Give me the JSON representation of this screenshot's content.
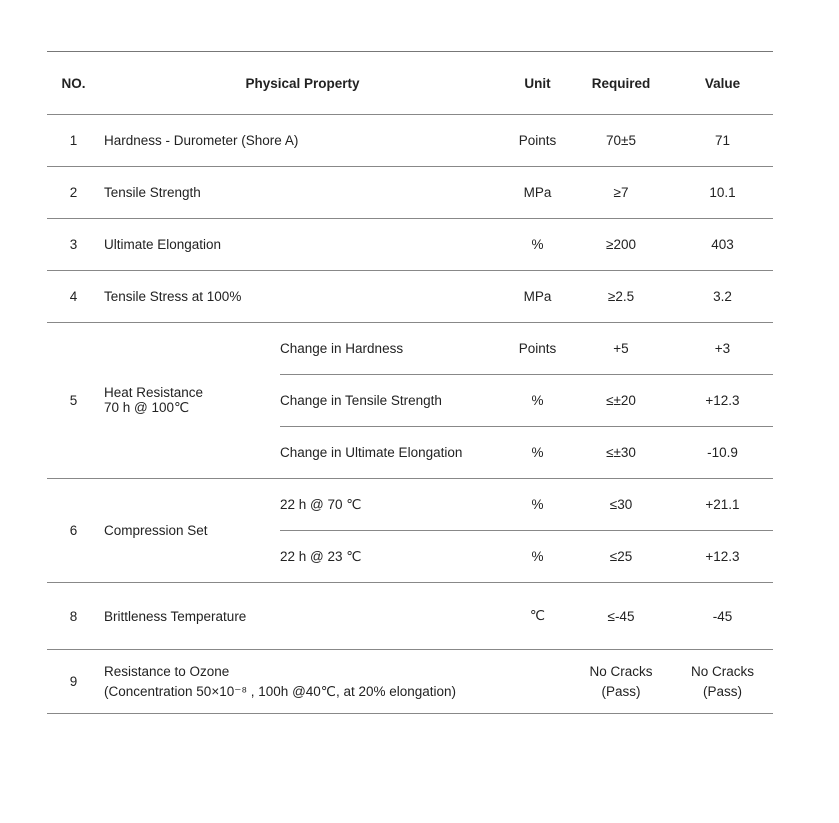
{
  "header": {
    "no": "NO.",
    "property": "Physical Property",
    "unit": "Unit",
    "required": "Required",
    "value": "Value"
  },
  "rows": [
    {
      "no": "1",
      "property": "Hardness  -  Durometer (Shore A)",
      "unit": "Points",
      "required": "70±5",
      "value": "71"
    },
    {
      "no": "2",
      "property": "Tensile Strength",
      "unit": "MPa",
      "required": "≥7",
      "value": "10.1"
    },
    {
      "no": "3",
      "property": "Ultimate Elongation",
      "unit": "%",
      "required": "≥200",
      "value": "403"
    },
    {
      "no": "4",
      "property": "Tensile Stress at 100%",
      "unit": "MPa",
      "required": "≥2.5",
      "value": "3.2"
    },
    {
      "no": "5",
      "property": "Heat Resistance",
      "property_line2": "70 h @ 100℃",
      "sub": [
        {
          "label": "Change in Hardness",
          "unit": "Points",
          "required": "+5",
          "value": "+3"
        },
        {
          "label": "Change in Tensile Strength",
          "unit": "%",
          "required": "≤±20",
          "value": "+12.3"
        },
        {
          "label": "Change in Ultimate Elongation",
          "unit": "%",
          "required": "≤±30",
          "value": "-10.9"
        }
      ]
    },
    {
      "no": "6",
      "property": "Compression Set",
      "sub": [
        {
          "label": "22 h @ 70 ℃",
          "unit": "%",
          "required": "≤30",
          "value": "+21.1"
        },
        {
          "label": "22 h @ 23 ℃",
          "unit": "%",
          "required": "≤25",
          "value": "+12.3"
        }
      ]
    },
    {
      "no": "8",
      "property": "Brittleness Temperature",
      "unit": "℃",
      "required": "≤-45",
      "value": "-45"
    },
    {
      "no": "9",
      "property": "Resistance to Ozone",
      "property_line2": "(Concentration 50×10⁻⁸ , 100h @40℃,  at 20% elongation)",
      "unit": "",
      "required": "No Cracks",
      "required_line2": "(Pass)",
      "value": "No Cracks",
      "value_line2": "(Pass)"
    }
  ]
}
